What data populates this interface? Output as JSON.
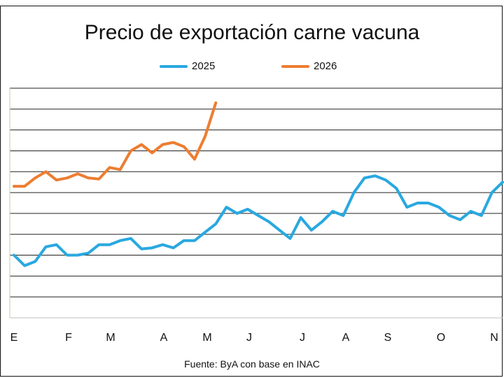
{
  "chart_data": {
    "type": "line",
    "title": "Precio de exportación carne vacuna",
    "source": "Fuente: ByA con base en INAC",
    "xlabel": "",
    "ylabel": "",
    "x_tick_labels": [
      "E",
      "F",
      "M",
      "A",
      "M",
      "J",
      "J",
      "A",
      "S",
      "O",
      "N"
    ],
    "x_range": [
      0,
      46
    ],
    "y_range": [
      0,
      11
    ],
    "grid": true,
    "legend_position": "top",
    "series": [
      {
        "name": "2025",
        "color": "#29A8E0",
        "values": [
          3.0,
          2.5,
          2.7,
          3.4,
          3.5,
          3.0,
          3.0,
          3.1,
          3.5,
          3.5,
          3.7,
          3.8,
          3.3,
          3.35,
          3.5,
          3.35,
          3.7,
          3.7,
          4.1,
          4.5,
          5.3,
          5.0,
          5.2,
          4.9,
          4.6,
          4.2,
          3.8,
          4.8,
          4.2,
          4.6,
          5.1,
          4.9,
          6.0,
          6.7,
          6.8,
          6.6,
          6.2,
          5.3,
          5.5,
          5.5,
          5.3,
          4.9,
          4.7,
          5.1,
          4.9,
          6.0,
          6.5
        ]
      },
      {
        "name": "2026",
        "color": "#ED7D31",
        "values": [
          6.3,
          6.3,
          6.7,
          7.0,
          6.6,
          6.7,
          6.9,
          6.7,
          6.65,
          7.2,
          7.1,
          8.0,
          8.3,
          7.9,
          8.3,
          8.4,
          8.2,
          7.6,
          8.7,
          10.3
        ]
      }
    ]
  }
}
